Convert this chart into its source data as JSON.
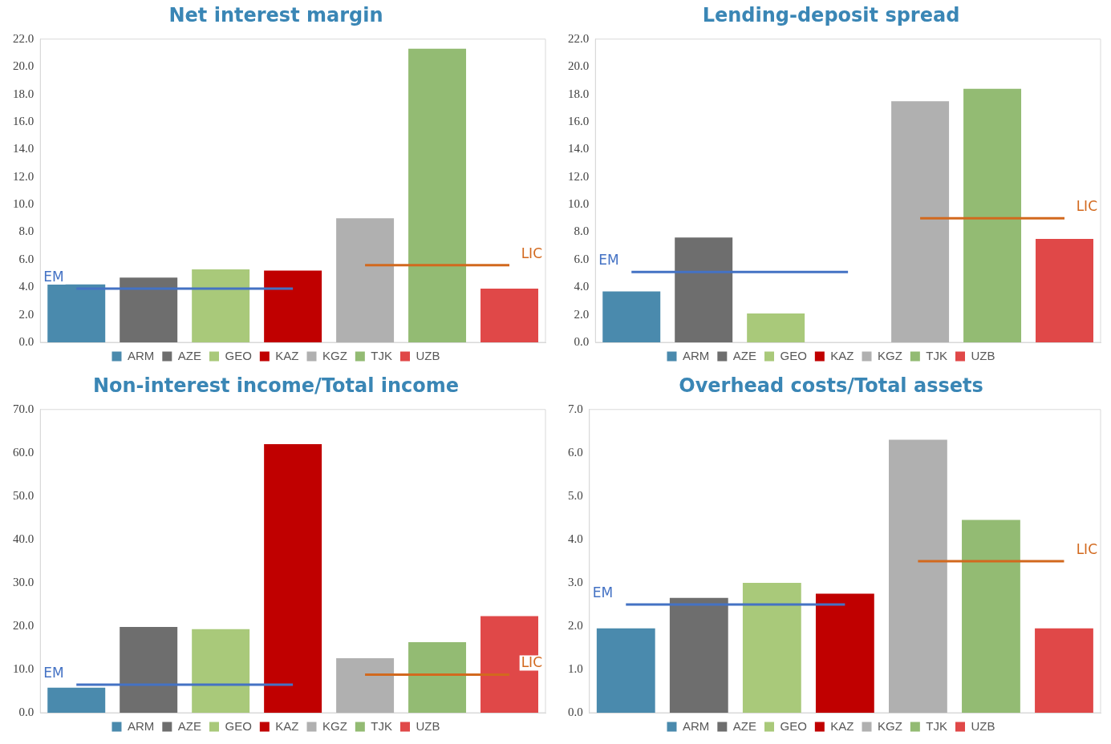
{
  "chart_data": [
    {
      "type": "bar",
      "title": "Net interest margin",
      "categories": [
        null,
        null,
        null,
        null,
        null,
        null,
        null
      ],
      "ylim": [
        0,
        22
      ],
      "yticks": [
        {
          "value": 0,
          "label": "0.0"
        },
        {
          "value": 2,
          "label": "2.0"
        },
        {
          "value": 4,
          "label": "4.0"
        },
        {
          "value": 6,
          "label": "6.0"
        },
        {
          "value": 8,
          "label": "8.0"
        },
        {
          "value": 10,
          "label": "10.0"
        },
        {
          "value": 12,
          "label": "12.0"
        },
        {
          "value": 14,
          "label": "14.0"
        },
        {
          "value": 16,
          "label": "16.0"
        },
        {
          "value": 18,
          "label": "18.0"
        },
        {
          "value": 20,
          "label": "20.0"
        },
        {
          "value": 22,
          "label": "22.0"
        }
      ],
      "tick_labels": "y",
      "grid": false,
      "legend": "bottom",
      "series": [
        {
          "name": "ARM",
          "color": "#4a8aad",
          "values": [
            4.2,
            null,
            null,
            null,
            null,
            null,
            null
          ]
        },
        {
          "name": "AZE",
          "color": "#6e6e6e",
          "values": [
            null,
            4.7,
            null,
            null,
            null,
            null,
            null
          ]
        },
        {
          "name": "GEO",
          "color": "#a9c97a",
          "values": [
            null,
            null,
            5.3,
            null,
            null,
            null,
            null
          ]
        },
        {
          "name": "KAZ",
          "color": "#c00000",
          "values": [
            null,
            null,
            null,
            5.2,
            null,
            null,
            null
          ]
        },
        {
          "name": "KGZ",
          "color": "#b0b0b0",
          "values": [
            null,
            null,
            null,
            null,
            9.0,
            null,
            null
          ]
        },
        {
          "name": "TJK",
          "color": "#93bb73",
          "values": [
            null,
            null,
            null,
            null,
            null,
            21.3,
            null
          ]
        },
        {
          "name": "UZB",
          "color": "#e04848",
          "values": [
            null,
            null,
            null,
            null,
            null,
            null,
            3.9
          ]
        },
        {
          "type": "line",
          "name": "EM",
          "color": "#4472c4",
          "values": [
            3.9,
            3.9,
            3.9,
            3.9,
            null,
            null,
            null
          ]
        },
        {
          "type": "line",
          "name": "LIC",
          "color": "#d2691e",
          "values": [
            null,
            null,
            null,
            null,
            5.6,
            5.6,
            5.6
          ]
        }
      ]
    },
    {
      "type": "bar",
      "title": "Lending-deposit spread",
      "categories": [
        null,
        null,
        null,
        null,
        null,
        null,
        null
      ],
      "ylim": [
        0,
        22
      ],
      "yticks": [
        {
          "value": 0,
          "label": "0.0"
        },
        {
          "value": 2,
          "label": "2.0"
        },
        {
          "value": 4,
          "label": "4.0"
        },
        {
          "value": 6,
          "label": "6.0"
        },
        {
          "value": 8,
          "label": "8.0"
        },
        {
          "value": 10,
          "label": "10.0"
        },
        {
          "value": 12,
          "label": "12.0"
        },
        {
          "value": 14,
          "label": "14.0"
        },
        {
          "value": 16,
          "label": "16.0"
        },
        {
          "value": 18,
          "label": "18.0"
        },
        {
          "value": 20,
          "label": "20.0"
        },
        {
          "value": 22,
          "label": "22.0"
        }
      ],
      "tick_labels": "y",
      "grid": false,
      "legend": "bottom",
      "series": [
        {
          "name": "ARM",
          "color": "#4a8aad",
          "values": [
            3.7,
            null,
            null,
            null,
            null,
            null,
            null
          ]
        },
        {
          "name": "AZE",
          "color": "#6e6e6e",
          "values": [
            null,
            7.6,
            null,
            null,
            null,
            null,
            null
          ]
        },
        {
          "name": "GEO",
          "color": "#a9c97a",
          "values": [
            null,
            null,
            2.1,
            null,
            null,
            null,
            null
          ]
        },
        {
          "name": "KAZ",
          "color": "#c00000",
          "values": [
            null,
            null,
            null,
            null,
            null,
            null,
            null
          ]
        },
        {
          "name": "KGZ",
          "color": "#b0b0b0",
          "values": [
            null,
            null,
            null,
            null,
            17.5,
            null,
            null
          ]
        },
        {
          "name": "TJK",
          "color": "#93bb73",
          "values": [
            null,
            null,
            null,
            null,
            null,
            18.4,
            null
          ]
        },
        {
          "name": "UZB",
          "color": "#e04848",
          "values": [
            null,
            null,
            null,
            null,
            null,
            null,
            7.5
          ]
        },
        {
          "type": "line",
          "name": "EM",
          "color": "#4472c4",
          "values": [
            5.1,
            5.1,
            5.1,
            5.1,
            null,
            null,
            null
          ]
        },
        {
          "type": "line",
          "name": "LIC",
          "color": "#d2691e",
          "values": [
            null,
            null,
            null,
            null,
            9.0,
            9.0,
            9.0
          ]
        }
      ]
    },
    {
      "type": "bar",
      "title": "Non-interest income/Total income",
      "categories": [
        null,
        null,
        null,
        null,
        null,
        null,
        null
      ],
      "ylim": [
        0,
        70
      ],
      "yticks": [
        {
          "value": 0,
          "label": "0.0"
        },
        {
          "value": 10,
          "label": "10.0"
        },
        {
          "value": 20,
          "label": "20.0"
        },
        {
          "value": 30,
          "label": "30.0"
        },
        {
          "value": 40,
          "label": "40.0"
        },
        {
          "value": 50,
          "label": "50.0"
        },
        {
          "value": 60,
          "label": "60.0"
        },
        {
          "value": 70,
          "label": "70.0"
        }
      ],
      "tick_labels": "y",
      "grid": false,
      "legend": "bottom",
      "series": [
        {
          "name": "ARM",
          "color": "#4a8aad",
          "values": [
            5.8,
            null,
            null,
            null,
            null,
            null,
            null
          ]
        },
        {
          "name": "AZE",
          "color": "#6e6e6e",
          "values": [
            null,
            19.8,
            null,
            null,
            null,
            null,
            null
          ]
        },
        {
          "name": "GEO",
          "color": "#a9c97a",
          "values": [
            null,
            null,
            19.3,
            null,
            null,
            null,
            null
          ]
        },
        {
          "name": "KAZ",
          "color": "#c00000",
          "values": [
            null,
            null,
            null,
            62.0,
            null,
            null,
            null
          ]
        },
        {
          "name": "KGZ",
          "color": "#b0b0b0",
          "values": [
            null,
            null,
            null,
            null,
            12.6,
            null,
            null
          ]
        },
        {
          "name": "TJK",
          "color": "#93bb73",
          "values": [
            null,
            null,
            null,
            null,
            null,
            16.3,
            null
          ]
        },
        {
          "name": "UZB",
          "color": "#e04848",
          "values": [
            null,
            null,
            null,
            null,
            null,
            null,
            22.3
          ]
        },
        {
          "type": "line",
          "name": "EM",
          "color": "#4472c4",
          "values": [
            6.5,
            6.5,
            6.5,
            6.5,
            null,
            null,
            null
          ]
        },
        {
          "type": "line",
          "name": "LIC",
          "color": "#d2691e",
          "values": [
            null,
            null,
            null,
            null,
            8.8,
            8.8,
            8.8
          ]
        }
      ]
    },
    {
      "type": "bar",
      "title": "Overhead costs/Total assets",
      "categories": [
        null,
        null,
        null,
        null,
        null,
        null,
        null
      ],
      "ylim": [
        0,
        7
      ],
      "yticks": [
        {
          "value": 0,
          "label": "0.0"
        },
        {
          "value": 1,
          "label": "1.0"
        },
        {
          "value": 2,
          "label": "2.0"
        },
        {
          "value": 3,
          "label": "3.0"
        },
        {
          "value": 4,
          "label": "4.0"
        },
        {
          "value": 5,
          "label": "5.0"
        },
        {
          "value": 6,
          "label": "6.0"
        },
        {
          "value": 7,
          "label": "7.0"
        }
      ],
      "tick_labels": "y",
      "grid": false,
      "legend": "bottom",
      "series": [
        {
          "name": "ARM",
          "color": "#4a8aad",
          "values": [
            1.95,
            null,
            null,
            null,
            null,
            null,
            null
          ]
        },
        {
          "name": "AZE",
          "color": "#6e6e6e",
          "values": [
            null,
            2.65,
            null,
            null,
            null,
            null,
            null
          ]
        },
        {
          "name": "GEO",
          "color": "#a9c97a",
          "values": [
            null,
            null,
            3.0,
            null,
            null,
            null,
            null
          ]
        },
        {
          "name": "KAZ",
          "color": "#c00000",
          "values": [
            null,
            null,
            null,
            2.75,
            null,
            null,
            null
          ]
        },
        {
          "name": "KGZ",
          "color": "#b0b0b0",
          "values": [
            null,
            null,
            null,
            null,
            6.3,
            null,
            null
          ]
        },
        {
          "name": "TJK",
          "color": "#93bb73",
          "values": [
            null,
            null,
            null,
            null,
            null,
            4.45,
            null
          ]
        },
        {
          "name": "UZB",
          "color": "#e04848",
          "values": [
            null,
            null,
            null,
            null,
            null,
            null,
            1.95
          ]
        },
        {
          "type": "line",
          "name": "EM",
          "color": "#4472c4",
          "values": [
            2.5,
            2.5,
            2.5,
            2.5,
            null,
            null,
            null
          ]
        },
        {
          "type": "line",
          "name": "LIC",
          "color": "#d2691e",
          "values": [
            null,
            null,
            null,
            null,
            3.5,
            3.5,
            3.5
          ]
        }
      ]
    }
  ]
}
